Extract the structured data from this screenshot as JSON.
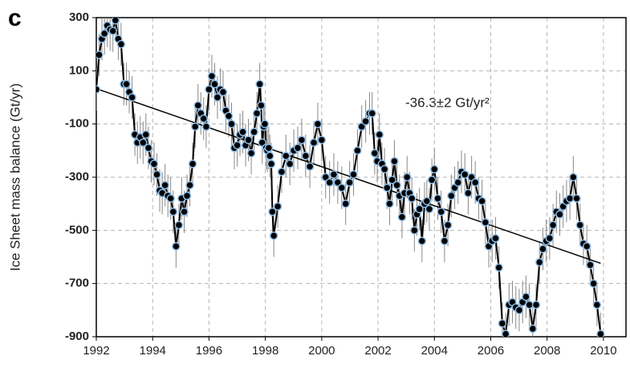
{
  "chart_data": {
    "type": "line",
    "panel_label": "c",
    "ylabel": "Ice Sheet mass balance (Gt/yr)",
    "annotation": "-36.3±2 Gt/yr²",
    "xlim": [
      1992,
      2010.8
    ],
    "xticks": [
      1992,
      1994,
      1996,
      1998,
      2000,
      2002,
      2004,
      2006,
      2008,
      2010
    ],
    "ylim": [
      -900,
      300
    ],
    "yticks": [
      -900,
      -700,
      -500,
      -300,
      -100,
      100,
      300
    ],
    "grid": true,
    "series": [
      {
        "color": "#000000",
        "marker_edge": "#8fbde6",
        "error": 80,
        "x": [
          1992.0,
          1992.1,
          1992.2,
          1992.29,
          1992.39,
          1992.49,
          1992.59,
          1992.68,
          1992.78,
          1992.88,
          1992.98,
          1993.07,
          1993.17,
          1993.27,
          1993.37,
          1993.46,
          1993.56,
          1993.66,
          1993.76,
          1993.85,
          1993.95,
          1994.05,
          1994.15,
          1994.25,
          1994.34,
          1994.44,
          1994.54,
          1994.64,
          1994.73,
          1994.83,
          1994.93,
          1995.03,
          1995.12,
          1995.22,
          1995.32,
          1995.42,
          1995.51,
          1995.61,
          1995.71,
          1995.81,
          1995.9,
          1996.0,
          1996.1,
          1996.2,
          1996.3,
          1996.4,
          1996.5,
          1996.6,
          1996.7,
          1996.8,
          1996.9,
          1997.0,
          1997.1,
          1997.2,
          1997.3,
          1997.4,
          1997.5,
          1997.6,
          1997.7,
          1997.8,
          1997.85,
          1997.89,
          1997.94,
          1997.98,
          1998.03,
          1998.07,
          1998.12,
          1998.16,
          1998.21,
          1998.25,
          1998.3,
          1998.44,
          1998.58,
          1998.73,
          1998.87,
          1999.01,
          1999.15,
          1999.29,
          1999.43,
          1999.58,
          1999.72,
          1999.86,
          2000.0,
          2000.14,
          2000.28,
          2000.43,
          2000.57,
          2000.71,
          2000.85,
          2000.99,
          2001.13,
          2001.27,
          2001.42,
          2001.56,
          2001.7,
          2001.79,
          2001.88,
          2001.97,
          2002.05,
          2002.14,
          2002.23,
          2002.32,
          2002.41,
          2002.5,
          2002.58,
          2002.67,
          2002.76,
          2002.85,
          2002.94,
          2003.03,
          2003.12,
          2003.2,
          2003.29,
          2003.38,
          2003.47,
          2003.56,
          2003.65,
          2003.73,
          2003.82,
          2003.91,
          2004.0,
          2004.12,
          2004.24,
          2004.36,
          2004.48,
          2004.6,
          2004.72,
          2004.84,
          2004.96,
          2005.08,
          2005.2,
          2005.32,
          2005.45,
          2005.57,
          2005.69,
          2005.81,
          2005.93,
          2006.05,
          2006.17,
          2006.29,
          2006.41,
          2006.53,
          2006.65,
          2006.77,
          2006.89,
          2007.01,
          2007.13,
          2007.25,
          2007.37,
          2007.49,
          2007.61,
          2007.73,
          2007.85,
          2007.97,
          2008.09,
          2008.21,
          2008.33,
          2008.45,
          2008.57,
          2008.69,
          2008.81,
          2008.93,
          2009.05,
          2009.17,
          2009.29,
          2009.41,
          2009.53,
          2009.65,
          2009.77,
          2009.9
        ],
        "values": [
          30,
          160,
          220,
          240,
          270,
          255,
          250,
          290,
          220,
          200,
          50,
          50,
          20,
          0,
          -140,
          -170,
          -150,
          -170,
          -140,
          -190,
          -240,
          -250,
          -290,
          -350,
          -360,
          -330,
          -370,
          -380,
          -430,
          -560,
          -480,
          -380,
          -430,
          -370,
          -330,
          -250,
          -110,
          -30,
          -60,
          -80,
          -110,
          30,
          80,
          50,
          0,
          30,
          20,
          -50,
          -70,
          -100,
          -190,
          -180,
          -140,
          -130,
          -180,
          -160,
          -210,
          -130,
          -60,
          50,
          -30,
          -170,
          -110,
          -100,
          -190,
          -200,
          -190,
          -220,
          -250,
          -430,
          -520,
          -410,
          -280,
          -220,
          -250,
          -200,
          -190,
          -160,
          -220,
          -260,
          -170,
          -100,
          -160,
          -300,
          -320,
          -290,
          -320,
          -340,
          -400,
          -320,
          -290,
          -200,
          -110,
          -90,
          -60,
          -60,
          -210,
          -240,
          -140,
          -250,
          -270,
          -340,
          -400,
          -310,
          -240,
          -330,
          -370,
          -450,
          -360,
          -300,
          -360,
          -380,
          -500,
          -440,
          -420,
          -540,
          -400,
          -390,
          -420,
          -310,
          -270,
          -380,
          -430,
          -540,
          -480,
          -370,
          -340,
          -320,
          -280,
          -290,
          -360,
          -300,
          -320,
          -380,
          -390,
          -470,
          -560,
          -540,
          -530,
          -640,
          -850,
          -890,
          -780,
          -770,
          -790,
          -800,
          -770,
          -750,
          -780,
          -870,
          -780,
          -620,
          -570,
          -540,
          -530,
          -480,
          -430,
          -440,
          -410,
          -390,
          -380,
          -300,
          -380,
          -480,
          -550,
          -560,
          -630,
          -700,
          -780,
          -890
        ]
      }
    ],
    "trend": {
      "color": "#000000",
      "x": [
        1992,
        2009.9
      ],
      "values": [
        33,
        -624
      ]
    }
  }
}
